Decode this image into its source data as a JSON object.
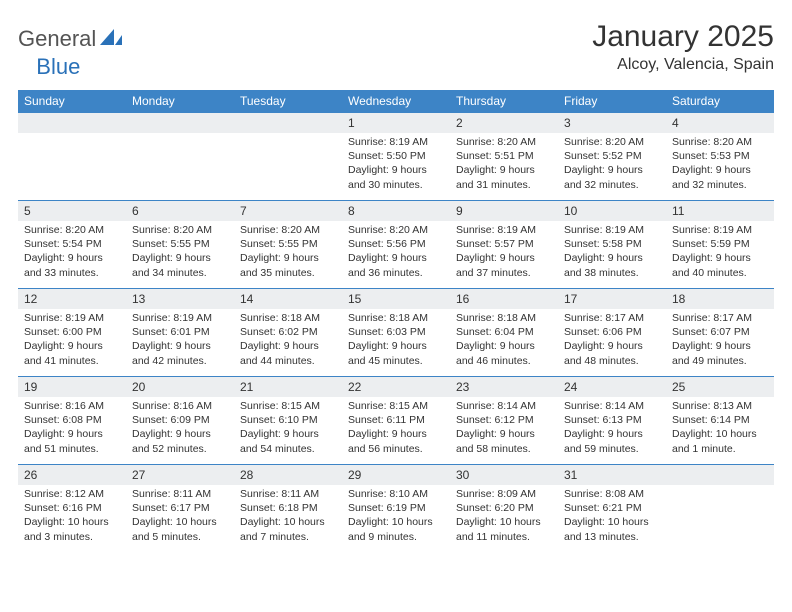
{
  "logo": {
    "part1": "General",
    "part2": "Blue"
  },
  "title": "January 2025",
  "location": "Alcoy, Valencia, Spain",
  "colors": {
    "header_bg": "#3d84c6",
    "header_text": "#ffffff",
    "daynum_bg": "#eceef0",
    "border": "#3d84c6",
    "text": "#333333",
    "logo_gray": "#545454",
    "logo_blue": "#2a71b8",
    "page_bg": "#ffffff"
  },
  "weekdays": [
    "Sunday",
    "Monday",
    "Tuesday",
    "Wednesday",
    "Thursday",
    "Friday",
    "Saturday"
  ],
  "font": {
    "title_size": 30,
    "location_size": 16,
    "weekday_size": 12,
    "daynum_size": 12,
    "body_size": 10.5
  },
  "weeks": [
    [
      null,
      null,
      null,
      {
        "n": "1",
        "sr": "8:19 AM",
        "ss": "5:50 PM",
        "dl": "9 hours and 30 minutes."
      },
      {
        "n": "2",
        "sr": "8:20 AM",
        "ss": "5:51 PM",
        "dl": "9 hours and 31 minutes."
      },
      {
        "n": "3",
        "sr": "8:20 AM",
        "ss": "5:52 PM",
        "dl": "9 hours and 32 minutes."
      },
      {
        "n": "4",
        "sr": "8:20 AM",
        "ss": "5:53 PM",
        "dl": "9 hours and 32 minutes."
      }
    ],
    [
      {
        "n": "5",
        "sr": "8:20 AM",
        "ss": "5:54 PM",
        "dl": "9 hours and 33 minutes."
      },
      {
        "n": "6",
        "sr": "8:20 AM",
        "ss": "5:55 PM",
        "dl": "9 hours and 34 minutes."
      },
      {
        "n": "7",
        "sr": "8:20 AM",
        "ss": "5:55 PM",
        "dl": "9 hours and 35 minutes."
      },
      {
        "n": "8",
        "sr": "8:20 AM",
        "ss": "5:56 PM",
        "dl": "9 hours and 36 minutes."
      },
      {
        "n": "9",
        "sr": "8:19 AM",
        "ss": "5:57 PM",
        "dl": "9 hours and 37 minutes."
      },
      {
        "n": "10",
        "sr": "8:19 AM",
        "ss": "5:58 PM",
        "dl": "9 hours and 38 minutes."
      },
      {
        "n": "11",
        "sr": "8:19 AM",
        "ss": "5:59 PM",
        "dl": "9 hours and 40 minutes."
      }
    ],
    [
      {
        "n": "12",
        "sr": "8:19 AM",
        "ss": "6:00 PM",
        "dl": "9 hours and 41 minutes."
      },
      {
        "n": "13",
        "sr": "8:19 AM",
        "ss": "6:01 PM",
        "dl": "9 hours and 42 minutes."
      },
      {
        "n": "14",
        "sr": "8:18 AM",
        "ss": "6:02 PM",
        "dl": "9 hours and 44 minutes."
      },
      {
        "n": "15",
        "sr": "8:18 AM",
        "ss": "6:03 PM",
        "dl": "9 hours and 45 minutes."
      },
      {
        "n": "16",
        "sr": "8:18 AM",
        "ss": "6:04 PM",
        "dl": "9 hours and 46 minutes."
      },
      {
        "n": "17",
        "sr": "8:17 AM",
        "ss": "6:06 PM",
        "dl": "9 hours and 48 minutes."
      },
      {
        "n": "18",
        "sr": "8:17 AM",
        "ss": "6:07 PM",
        "dl": "9 hours and 49 minutes."
      }
    ],
    [
      {
        "n": "19",
        "sr": "8:16 AM",
        "ss": "6:08 PM",
        "dl": "9 hours and 51 minutes."
      },
      {
        "n": "20",
        "sr": "8:16 AM",
        "ss": "6:09 PM",
        "dl": "9 hours and 52 minutes."
      },
      {
        "n": "21",
        "sr": "8:15 AM",
        "ss": "6:10 PM",
        "dl": "9 hours and 54 minutes."
      },
      {
        "n": "22",
        "sr": "8:15 AM",
        "ss": "6:11 PM",
        "dl": "9 hours and 56 minutes."
      },
      {
        "n": "23",
        "sr": "8:14 AM",
        "ss": "6:12 PM",
        "dl": "9 hours and 58 minutes."
      },
      {
        "n": "24",
        "sr": "8:14 AM",
        "ss": "6:13 PM",
        "dl": "9 hours and 59 minutes."
      },
      {
        "n": "25",
        "sr": "8:13 AM",
        "ss": "6:14 PM",
        "dl": "10 hours and 1 minute."
      }
    ],
    [
      {
        "n": "26",
        "sr": "8:12 AM",
        "ss": "6:16 PM",
        "dl": "10 hours and 3 minutes."
      },
      {
        "n": "27",
        "sr": "8:11 AM",
        "ss": "6:17 PM",
        "dl": "10 hours and 5 minutes."
      },
      {
        "n": "28",
        "sr": "8:11 AM",
        "ss": "6:18 PM",
        "dl": "10 hours and 7 minutes."
      },
      {
        "n": "29",
        "sr": "8:10 AM",
        "ss": "6:19 PM",
        "dl": "10 hours and 9 minutes."
      },
      {
        "n": "30",
        "sr": "8:09 AM",
        "ss": "6:20 PM",
        "dl": "10 hours and 11 minutes."
      },
      {
        "n": "31",
        "sr": "8:08 AM",
        "ss": "6:21 PM",
        "dl": "10 hours and 13 minutes."
      },
      null
    ]
  ],
  "labels": {
    "sunrise": "Sunrise:",
    "sunset": "Sunset:",
    "daylight": "Daylight:"
  }
}
